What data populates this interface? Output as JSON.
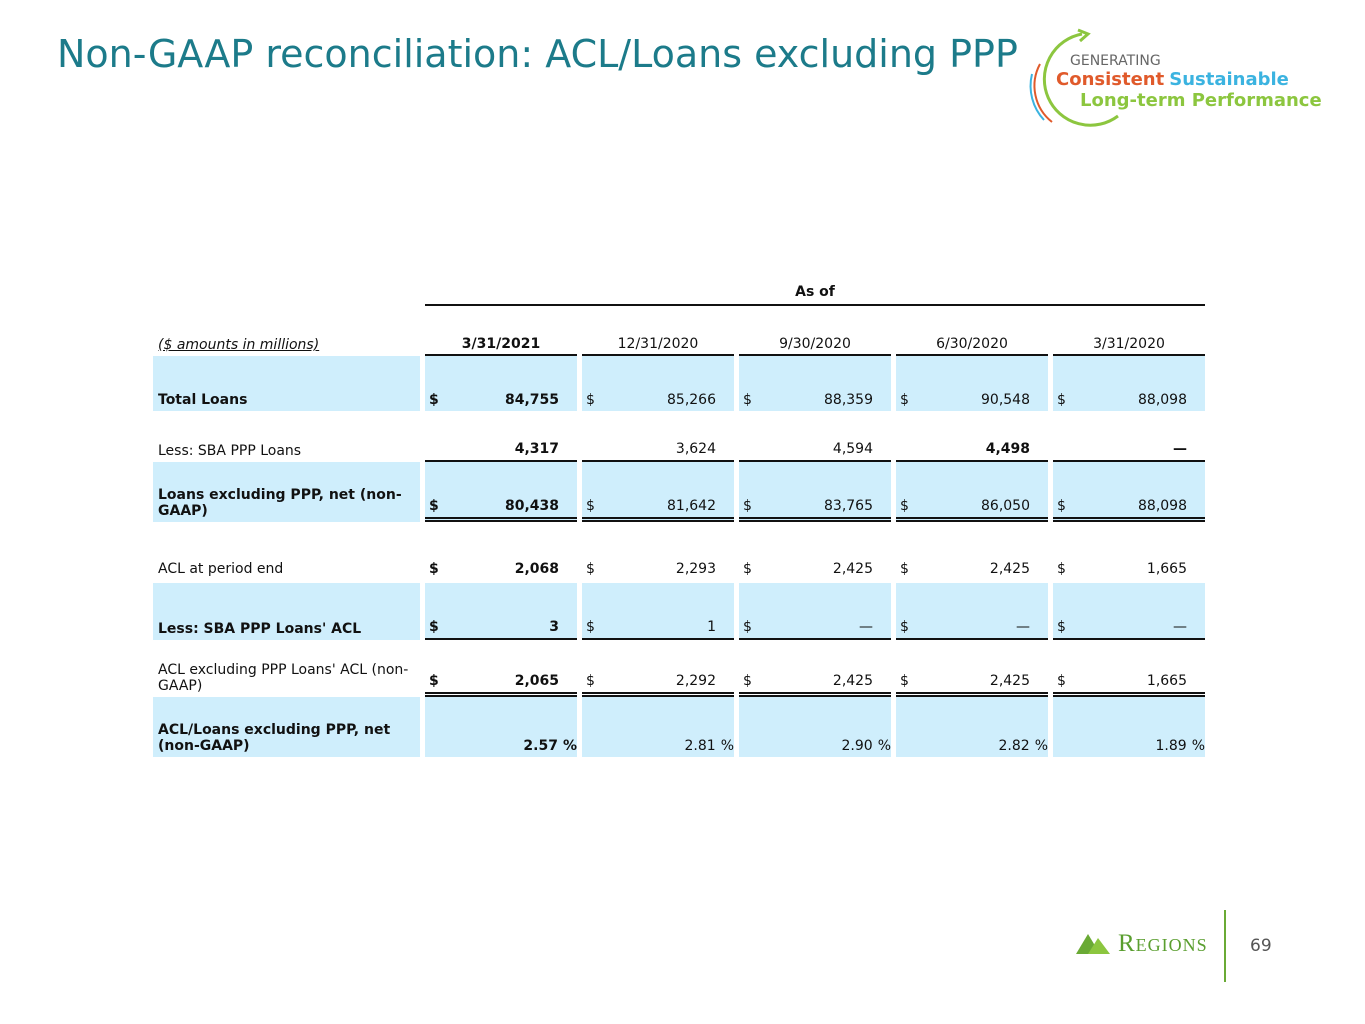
{
  "title": "Non-GAAP reconciliation: ACL/Loans excluding PPP",
  "logo": {
    "line1": "GENERATING",
    "word1": "Consistent",
    "word2": "Sustainable",
    "line3": "Long-term Performance"
  },
  "table": {
    "group_header": "As of",
    "unit_label": "($ amounts in millions)",
    "columns": [
      "3/31/2021",
      "12/31/2020",
      "9/30/2020",
      "6/30/2020",
      "3/31/2020"
    ],
    "rows": [
      {
        "label": "Total Loans",
        "cells": [
          {
            "sign": "$",
            "value": "84,755"
          },
          {
            "sign": "$",
            "value": "85,266"
          },
          {
            "sign": "$",
            "value": "88,359"
          },
          {
            "sign": "$",
            "value": "90,548"
          },
          {
            "sign": "$",
            "value": "88,098"
          }
        ]
      },
      {
        "label": "Less: SBA PPP Loans",
        "cells": [
          {
            "value": "4,317"
          },
          {
            "value": "3,624"
          },
          {
            "value": "4,594"
          },
          {
            "value": "4,498"
          },
          {
            "value": "—"
          }
        ]
      },
      {
        "label": "Loans excluding PPP, net (non-GAAP)",
        "cells": [
          {
            "sign": "$",
            "value": "80,438"
          },
          {
            "sign": "$",
            "value": "81,642"
          },
          {
            "sign": "$",
            "value": "83,765"
          },
          {
            "sign": "$",
            "value": "86,050"
          },
          {
            "sign": "$",
            "value": "88,098"
          }
        ]
      },
      {
        "label": "ACL at period end",
        "cells": [
          {
            "sign": "$",
            "value": "2,068"
          },
          {
            "sign": "$",
            "value": "2,293"
          },
          {
            "sign": "$",
            "value": "2,425"
          },
          {
            "sign": "$",
            "value": "2,425"
          },
          {
            "sign": "$",
            "value": "1,665"
          }
        ]
      },
      {
        "label": "Less: SBA PPP Loans' ACL",
        "cells": [
          {
            "sign": "$",
            "value": "3"
          },
          {
            "sign": "$",
            "value": "1"
          },
          {
            "sign": "$",
            "value": "—"
          },
          {
            "sign": "$",
            "value": "—"
          },
          {
            "sign": "$",
            "value": "—"
          }
        ]
      },
      {
        "label": "ACL excluding PPP Loans' ACL (non-GAAP)",
        "cells": [
          {
            "sign": "$",
            "value": "2,065"
          },
          {
            "sign": "$",
            "value": "2,292"
          },
          {
            "sign": "$",
            "value": "2,425"
          },
          {
            "sign": "$",
            "value": "2,425"
          },
          {
            "sign": "$",
            "value": "1,665"
          }
        ]
      },
      {
        "label": "ACL/Loans excluding PPP, net (non-GAAP)",
        "cells": [
          {
            "value": "2.57",
            "unit": "%"
          },
          {
            "value": "2.81",
            "unit": "%"
          },
          {
            "value": "2.90",
            "unit": "%"
          },
          {
            "value": "2.82",
            "unit": "%"
          },
          {
            "value": "1.89",
            "unit": "%"
          }
        ]
      }
    ]
  },
  "footer": {
    "brand": "Regions",
    "page": "69"
  }
}
